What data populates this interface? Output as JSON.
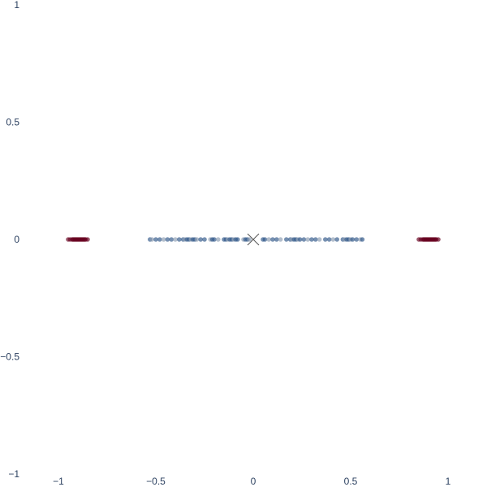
{
  "chart_data": {
    "type": "scatter",
    "title": "",
    "xlabel": "",
    "ylabel": "",
    "xlim": [
      -1.1,
      1.1
    ],
    "ylim": [
      -1,
      1
    ],
    "grid": false,
    "legend": "none",
    "x_ticks": [
      -1,
      -0.5,
      0,
      0.5,
      1
    ],
    "x_tick_labels": [
      "−1",
      "−0.5",
      "0",
      "0.5",
      "1"
    ],
    "y_ticks": [
      1,
      0.5,
      0,
      -0.5,
      -1
    ],
    "y_tick_labels": [
      "1",
      "0.5",
      "0",
      "−0.5",
      "−1"
    ],
    "colors": {
      "outer_cluster": "#67001f",
      "inner_cluster": "#2c5587",
      "inner_cluster_light": "#8a9bb0",
      "center_marker": "#555555",
      "tick_text": "#2a3f5f"
    },
    "series": [
      {
        "marker": "circle",
        "color_key": "outer_cluster",
        "points": [
          [
            -0.95,
            0
          ],
          [
            -0.94,
            0
          ],
          [
            -0.93,
            0
          ],
          [
            -0.925,
            0
          ],
          [
            -0.92,
            0
          ],
          [
            -0.915,
            0
          ],
          [
            -0.91,
            0
          ],
          [
            -0.905,
            0
          ],
          [
            -0.9,
            0
          ],
          [
            -0.895,
            0
          ],
          [
            -0.89,
            0
          ],
          [
            -0.885,
            0
          ],
          [
            -0.88,
            0
          ],
          [
            -0.875,
            0
          ],
          [
            -0.87,
            0
          ],
          [
            -0.865,
            0
          ],
          [
            -0.86,
            0
          ],
          [
            -0.85,
            0
          ],
          [
            0.85,
            0
          ],
          [
            0.86,
            0
          ],
          [
            0.87,
            0
          ],
          [
            0.875,
            0
          ],
          [
            0.88,
            0
          ],
          [
            0.885,
            0
          ],
          [
            0.89,
            0
          ],
          [
            0.895,
            0
          ],
          [
            0.9,
            0
          ],
          [
            0.905,
            0
          ],
          [
            0.91,
            0
          ],
          [
            0.915,
            0
          ],
          [
            0.92,
            0
          ],
          [
            0.925,
            0
          ],
          [
            0.93,
            0
          ],
          [
            0.935,
            0
          ],
          [
            0.94,
            0
          ],
          [
            0.95,
            0
          ]
        ]
      },
      {
        "marker": "circle",
        "color_key": "inner_cluster",
        "points": [
          [
            -0.53,
            0
          ],
          [
            -0.52,
            0
          ],
          [
            -0.5,
            0
          ],
          [
            -0.48,
            0
          ],
          [
            -0.46,
            0
          ],
          [
            -0.44,
            0
          ],
          [
            -0.42,
            0
          ],
          [
            -0.4,
            0
          ],
          [
            -0.38,
            0
          ],
          [
            -0.36,
            0
          ],
          [
            -0.35,
            0
          ],
          [
            -0.34,
            0
          ],
          [
            -0.33,
            0
          ],
          [
            -0.32,
            0
          ],
          [
            -0.31,
            0
          ],
          [
            -0.3,
            0
          ],
          [
            -0.29,
            0
          ],
          [
            -0.27,
            0
          ],
          [
            -0.25,
            0
          ],
          [
            -0.22,
            0
          ],
          [
            -0.21,
            0
          ],
          [
            -0.2,
            0
          ],
          [
            -0.18,
            0
          ],
          [
            -0.15,
            0
          ],
          [
            -0.14,
            0
          ],
          [
            -0.13,
            0
          ],
          [
            -0.12,
            0
          ],
          [
            -0.11,
            0
          ],
          [
            -0.1,
            0
          ],
          [
            -0.09,
            0
          ],
          [
            -0.08,
            0
          ],
          [
            -0.05,
            0
          ],
          [
            -0.04,
            0
          ],
          [
            -0.03,
            0
          ],
          [
            -0.02,
            0
          ],
          [
            0.05,
            0
          ],
          [
            0.06,
            0
          ],
          [
            0.08,
            0
          ],
          [
            0.1,
            0
          ],
          [
            0.12,
            0
          ],
          [
            0.14,
            0
          ],
          [
            0.17,
            0
          ],
          [
            0.19,
            0
          ],
          [
            0.2,
            0
          ],
          [
            0.21,
            0
          ],
          [
            0.22,
            0
          ],
          [
            0.23,
            0
          ],
          [
            0.24,
            0
          ],
          [
            0.26,
            0
          ],
          [
            0.28,
            0
          ],
          [
            0.3,
            0
          ],
          [
            0.32,
            0
          ],
          [
            0.34,
            0
          ],
          [
            0.37,
            0
          ],
          [
            0.39,
            0
          ],
          [
            0.41,
            0
          ],
          [
            0.43,
            0
          ],
          [
            0.46,
            0
          ],
          [
            0.47,
            0
          ],
          [
            0.48,
            0
          ],
          [
            0.49,
            0
          ],
          [
            0.5,
            0
          ],
          [
            0.51,
            0
          ],
          [
            0.53,
            0
          ],
          [
            0.55,
            0
          ],
          [
            0.56,
            0
          ]
        ]
      },
      {
        "marker": "x",
        "color_key": "center_marker",
        "points": [
          [
            0.0,
            0
          ]
        ]
      }
    ]
  }
}
